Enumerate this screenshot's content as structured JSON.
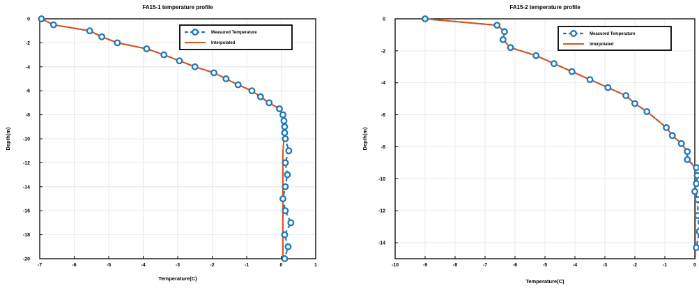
{
  "chart_data": [
    {
      "type": "line",
      "title": "FA15-1 temperature profile",
      "xlabel": "Temperature(C)",
      "ylabel": "Depth(m)",
      "xlim": [
        -7,
        1
      ],
      "ylim": [
        -20,
        0
      ],
      "xticks": [
        -7,
        -6,
        -5,
        -4,
        -3,
        -2,
        -1,
        0,
        1
      ],
      "yticks": [
        0,
        -2,
        -4,
        -6,
        -8,
        -10,
        -12,
        -14,
        -16,
        -18,
        -20
      ],
      "grid": true,
      "legend_position": "top-right",
      "series": [
        {
          "name": "Measured Temperature",
          "color": "#1f77b4",
          "style": "dashed-circle-markers",
          "points": [
            [
              -6.95,
              0
            ],
            [
              -6.6,
              -0.5
            ],
            [
              -5.55,
              -1
            ],
            [
              -5.2,
              -1.5
            ],
            [
              -4.75,
              -2
            ],
            [
              -3.9,
              -2.5
            ],
            [
              -3.4,
              -3
            ],
            [
              -2.95,
              -3.5
            ],
            [
              -2.5,
              -4
            ],
            [
              -1.95,
              -4.5
            ],
            [
              -1.6,
              -5
            ],
            [
              -1.25,
              -5.5
            ],
            [
              -0.85,
              -6
            ],
            [
              -0.6,
              -6.5
            ],
            [
              -0.35,
              -7
            ],
            [
              -0.05,
              -7.5
            ],
            [
              0.05,
              -8
            ],
            [
              0.08,
              -8.5
            ],
            [
              0.1,
              -9
            ],
            [
              0.1,
              -9.5
            ],
            [
              0.12,
              -10
            ],
            [
              0.22,
              -11
            ],
            [
              0.12,
              -12
            ],
            [
              0.18,
              -13
            ],
            [
              0.12,
              -14
            ],
            [
              0.05,
              -15
            ],
            [
              0.12,
              -16
            ],
            [
              0.28,
              -17
            ],
            [
              0.1,
              -18
            ],
            [
              0.2,
              -19
            ],
            [
              0.1,
              -20
            ]
          ]
        },
        {
          "name": "Interpolated",
          "color": "#d95319",
          "style": "solid",
          "points": [
            [
              -6.95,
              0
            ],
            [
              -6.6,
              -0.5
            ],
            [
              -5.55,
              -1
            ],
            [
              -5.2,
              -1.5
            ],
            [
              -4.75,
              -2
            ],
            [
              -3.9,
              -2.5
            ],
            [
              -3.4,
              -3
            ],
            [
              -2.95,
              -3.5
            ],
            [
              -2.5,
              -4
            ],
            [
              -1.95,
              -4.5
            ],
            [
              -1.6,
              -5
            ],
            [
              -1.25,
              -5.5
            ],
            [
              -0.85,
              -6
            ],
            [
              -0.6,
              -6.5
            ],
            [
              -0.35,
              -7
            ],
            [
              -0.05,
              -7.5
            ],
            [
              0.05,
              -8
            ],
            [
              0.08,
              -8.5
            ],
            [
              0.08,
              -9
            ],
            [
              0.08,
              -10
            ],
            [
              0.05,
              -11
            ],
            [
              0.05,
              -12
            ],
            [
              0.05,
              -13
            ],
            [
              0.05,
              -14
            ],
            [
              0.05,
              -15
            ],
            [
              0.05,
              -16
            ],
            [
              0.05,
              -17
            ],
            [
              0.05,
              -18
            ],
            [
              0.05,
              -19
            ],
            [
              0.05,
              -20
            ]
          ]
        }
      ]
    },
    {
      "type": "line",
      "title": "FA15-2 temperature profile",
      "xlabel": "Temperature(C)",
      "ylabel": "Depth(m)",
      "xlim": [
        -10,
        0
      ],
      "ylim": [
        -15,
        0
      ],
      "xticks": [
        -10,
        -9,
        -8,
        -7,
        -6,
        -5,
        -4,
        -3,
        -2,
        -1,
        0
      ],
      "yticks": [
        0,
        -2,
        -4,
        -6,
        -8,
        -10,
        -12,
        -14
      ],
      "grid": true,
      "legend_position": "top-right",
      "series": [
        {
          "name": "Measured Temperature",
          "color": "#1f77b4",
          "style": "dashed-circle-markers",
          "points": [
            [
              -9,
              0
            ],
            [
              -6.6,
              -0.4
            ],
            [
              -6.35,
              -0.8
            ],
            [
              -6.4,
              -1.3
            ],
            [
              -6.15,
              -1.8
            ],
            [
              -5.3,
              -2.3
            ],
            [
              -4.7,
              -2.8
            ],
            [
              -4.1,
              -3.3
            ],
            [
              -3.5,
              -3.8
            ],
            [
              -2.9,
              -4.3
            ],
            [
              -2.3,
              -4.8
            ],
            [
              -2,
              -5.3
            ],
            [
              -1.6,
              -5.8
            ],
            [
              -0.95,
              -6.8
            ],
            [
              -0.75,
              -7.3
            ],
            [
              -0.45,
              -7.8
            ],
            [
              -0.25,
              -8.3
            ],
            [
              -0.25,
              -8.8
            ],
            [
              0.05,
              -9.3
            ],
            [
              0.08,
              -9.8
            ],
            [
              0.05,
              -10.3
            ],
            [
              0.0,
              -10.8
            ],
            [
              0.1,
              -11.3
            ],
            [
              0.1,
              -12.3
            ],
            [
              0.15,
              -13.3
            ],
            [
              0.05,
              -14.3
            ]
          ]
        },
        {
          "name": "Interpolated",
          "color": "#d95319",
          "style": "solid",
          "points": [
            [
              -9,
              0
            ],
            [
              -6.6,
              -0.4
            ],
            [
              -6.35,
              -0.8
            ],
            [
              -6.4,
              -1.3
            ],
            [
              -6.15,
              -1.8
            ],
            [
              -5.3,
              -2.3
            ],
            [
              -4.7,
              -2.8
            ],
            [
              -4.1,
              -3.3
            ],
            [
              -3.5,
              -3.8
            ],
            [
              -2.9,
              -4.3
            ],
            [
              -2.3,
              -4.8
            ],
            [
              -2,
              -5.3
            ],
            [
              -1.6,
              -5.8
            ],
            [
              -0.95,
              -6.8
            ],
            [
              -0.75,
              -7.3
            ],
            [
              -0.45,
              -7.8
            ],
            [
              -0.25,
              -8.3
            ],
            [
              -0.25,
              -8.8
            ],
            [
              0.02,
              -9.3
            ],
            [
              0.02,
              -10
            ],
            [
              0.02,
              -11
            ],
            [
              0.02,
              -12
            ],
            [
              0.02,
              -13
            ],
            [
              0.02,
              -14
            ],
            [
              0.02,
              -15
            ]
          ]
        }
      ]
    }
  ]
}
